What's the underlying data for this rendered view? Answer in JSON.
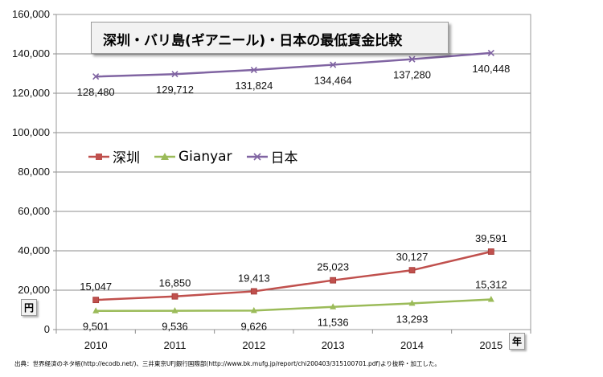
{
  "chart_data": {
    "type": "line",
    "title": "深圳・バリ島(ギアニール)・日本の最低賃金比較",
    "x": [
      "2010",
      "2011",
      "2012",
      "2013",
      "2014",
      "2015"
    ],
    "ylim": [
      0,
      160000
    ],
    "yticks": [
      "0",
      "20,000",
      "40,000",
      "60,000",
      "80,000",
      "100,000",
      "120,000",
      "140,000",
      "160,000"
    ],
    "ylabel": "円",
    "xlabel": "年",
    "legend_position": "upper-left",
    "series": [
      {
        "name": "深圳",
        "values": [
          15047,
          16850,
          19413,
          25023,
          30127,
          39591
        ],
        "labels": [
          "15,047",
          "16,850",
          "19,413",
          "25,023",
          "30,127",
          "39,591"
        ],
        "color": "#c0504d",
        "marker": "square"
      },
      {
        "name": "Gianyar",
        "values": [
          9501,
          9536,
          9626,
          11536,
          13293,
          15312
        ],
        "labels": [
          "9,501",
          "9,536",
          "9,626",
          "11,536",
          "13,293",
          "15,312"
        ],
        "color": "#9bbb59",
        "marker": "triangle"
      },
      {
        "name": "日本",
        "values": [
          128480,
          129712,
          131824,
          134464,
          137280,
          140448
        ],
        "labels": [
          "128,480",
          "129,712",
          "131,824",
          "134,464",
          "137,280",
          "140,448"
        ],
        "color": "#8064a2",
        "marker": "x"
      }
    ]
  },
  "source_note": "出典：世界経済のネタ帳(http://ecodb.net/)、三井東京UFJ銀行国際部(http://www.bk.mufg.jp/report/chi200403/315100701.pdf)より抜粋・加工した。"
}
